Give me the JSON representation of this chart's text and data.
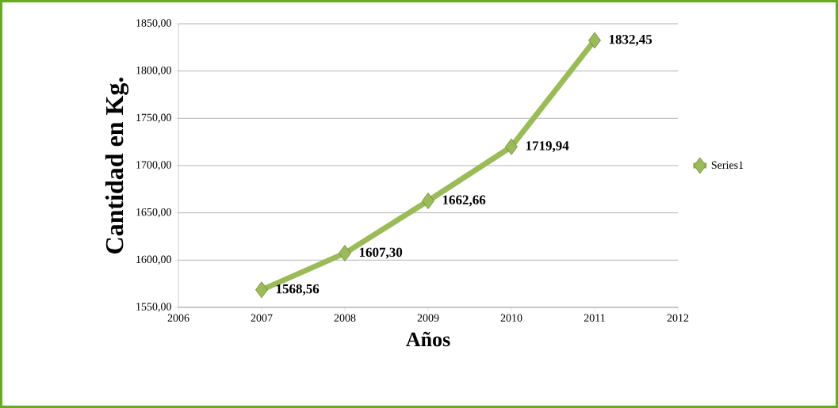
{
  "chart_data": {
    "type": "line",
    "xlabel": "Años",
    "ylabel": "Cantidad en Kg.",
    "x": [
      2007,
      2008,
      2009,
      2010,
      2011
    ],
    "series": [
      {
        "name": "Series1",
        "color": "#9bbb59",
        "values": [
          1568.56,
          1607.3,
          1662.66,
          1719.94,
          1832.45
        ],
        "value_labels": [
          "1568,56",
          "1607,30",
          "1662,66",
          "1719,94",
          "1832,45"
        ]
      }
    ],
    "xlim": [
      2006,
      2012
    ],
    "xticks": [
      2006,
      2007,
      2008,
      2009,
      2010,
      2011,
      2012
    ],
    "ylim": [
      1550,
      1850
    ],
    "yticks": [
      {
        "value": 1550,
        "label": "1550,00"
      },
      {
        "value": 1600,
        "label": "1600,00"
      },
      {
        "value": 1650,
        "label": "1650,00"
      },
      {
        "value": 1700,
        "label": "1700,00"
      },
      {
        "value": 1750,
        "label": "1750,00"
      },
      {
        "value": 1800,
        "label": "1800,00"
      },
      {
        "value": 1850,
        "label": "1850,00"
      }
    ],
    "grid": "y",
    "legend": "right",
    "marker": "diamond",
    "line_style": "solid"
  }
}
